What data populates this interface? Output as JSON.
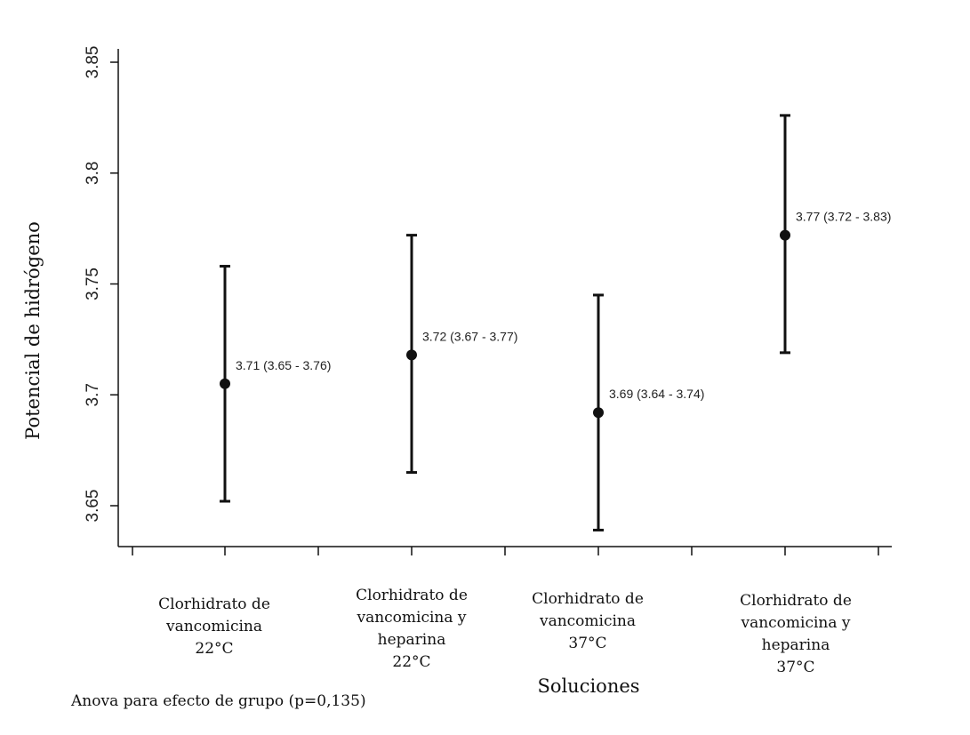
{
  "chart_data": {
    "type": "scatter",
    "xlabel": "Soluciones",
    "ylabel": "Potencial de hidrógeno",
    "ylim": [
      3.63,
      3.855
    ],
    "yticks": [
      3.65,
      3.7,
      3.75,
      3.8,
      3.85
    ],
    "ytick_labels": [
      "3.65",
      "3.7",
      "3.75",
      "3.8",
      "3.85"
    ],
    "grid": false,
    "categories": [
      [
        "Clorhidrato de",
        "vancomicina",
        "22°C"
      ],
      [
        "Clorhidrato de",
        "vancomicina y",
        "heparina",
        "22°C"
      ],
      [
        "Clorhidrato de",
        "vancomicina",
        "37°C"
      ],
      [
        "Clorhidrato de",
        "vancomicina y",
        "heparina",
        "37°C"
      ]
    ],
    "points": [
      {
        "mean": 3.705,
        "lower": 3.652,
        "upper": 3.758,
        "label": "3.71 (3.65 -  3.76)"
      },
      {
        "mean": 3.718,
        "lower": 3.665,
        "upper": 3.772,
        "label": "3.72 (3.67 -  3.77)"
      },
      {
        "mean": 3.692,
        "lower": 3.639,
        "upper": 3.745,
        "label": "3.69 (3.64 - 3.74)"
      },
      {
        "mean": 3.772,
        "lower": 3.719,
        "upper": 3.826,
        "label": "3.77 (3.72 -  3.83)"
      }
    ],
    "footnote": "Anova para efecto de grupo (p=0,135)"
  }
}
